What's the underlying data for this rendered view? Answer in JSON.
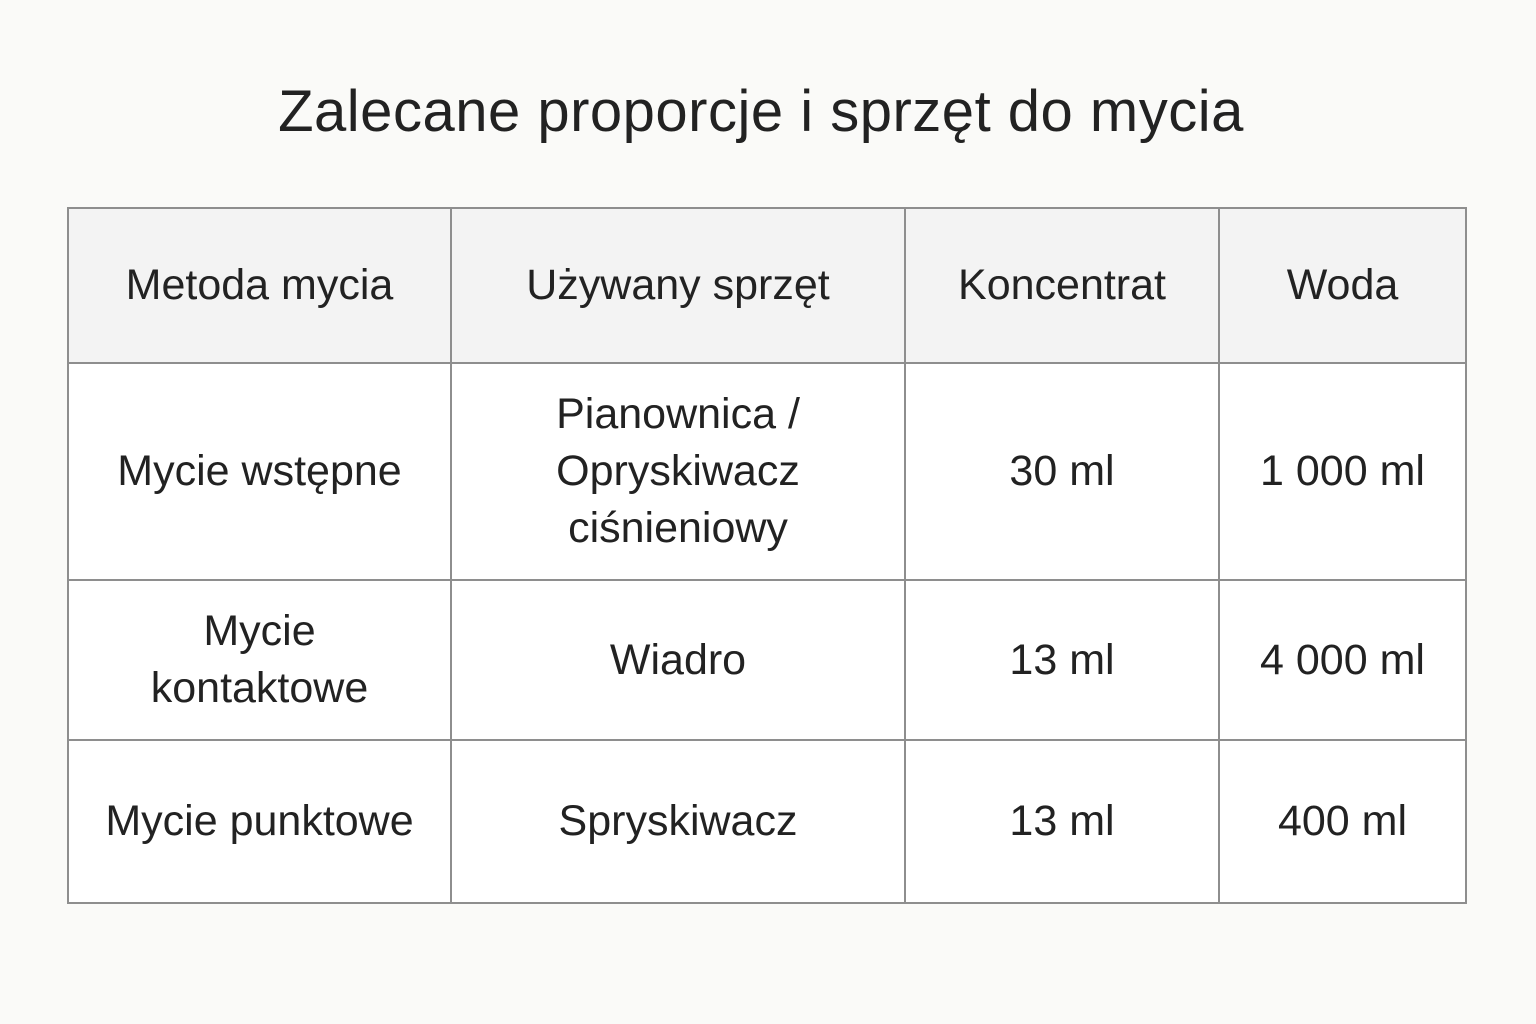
{
  "title": "Zalecane proporcje i sprzęt do mycia",
  "table": {
    "headers": [
      "Metoda mycia",
      "Używany sprzęt",
      "Koncentrat",
      "Woda"
    ],
    "rows": [
      [
        "Mycie wstępne",
        "Pianownica /\nOpryskiwacz\nciśnieniowy",
        "30 ml",
        "1 000 ml"
      ],
      [
        "Mycie\nkontaktowe",
        "Wiadro",
        "13 ml",
        "4 000 ml"
      ],
      [
        "Mycie punktowe",
        "Spryskiwacz",
        "13 ml",
        "400 ml"
      ]
    ]
  },
  "colors": {
    "header_bg": "#f3f3f3",
    "border": "#8e8e8e",
    "background": "#fafaf8"
  }
}
